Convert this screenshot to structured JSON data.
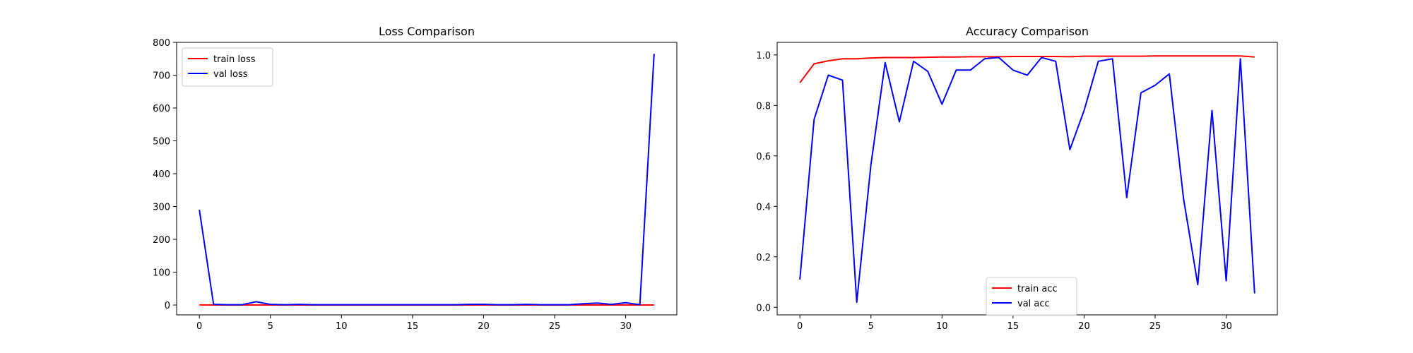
{
  "chart_data": [
    {
      "type": "line",
      "title": "Loss Comparison",
      "xlabel": "",
      "ylabel": "",
      "xlim": [
        -1.6,
        33.6
      ],
      "ylim": [
        -30,
        800
      ],
      "xticks": [
        0,
        5,
        10,
        15,
        20,
        25,
        30
      ],
      "yticks": [
        0,
        100,
        200,
        300,
        400,
        500,
        600,
        700,
        800
      ],
      "grid": false,
      "legend": "upper left",
      "x": [
        0,
        1,
        2,
        3,
        4,
        5,
        6,
        7,
        8,
        9,
        10,
        11,
        12,
        13,
        14,
        15,
        16,
        17,
        18,
        19,
        20,
        21,
        22,
        23,
        24,
        25,
        26,
        27,
        28,
        29,
        30,
        31,
        32
      ],
      "series": [
        {
          "name": "train loss",
          "color": "#ff0000",
          "values": [
            0.4,
            0.1,
            0.07,
            0.05,
            0.05,
            0.04,
            0.04,
            0.03,
            0.03,
            0.03,
            0.03,
            0.02,
            0.02,
            0.02,
            0.02,
            0.02,
            0.02,
            0.02,
            0.02,
            0.02,
            0.02,
            0.01,
            0.01,
            0.01,
            0.01,
            0.01,
            0.01,
            0.01,
            0.01,
            0.01,
            0.01,
            0.01,
            0.01
          ]
        },
        {
          "name": "val loss",
          "color": "#0000ff",
          "values": [
            290,
            2,
            1,
            1,
            10,
            2,
            1,
            2,
            1,
            1,
            1,
            1,
            1,
            1,
            1,
            1,
            1,
            1,
            1,
            2,
            2,
            1,
            1,
            2,
            1,
            1,
            1,
            4,
            6,
            2,
            7,
            1,
            765
          ]
        }
      ]
    },
    {
      "type": "line",
      "title": "Accuracy Comparison",
      "xlabel": "",
      "ylabel": "",
      "xlim": [
        -1.6,
        33.6
      ],
      "ylim": [
        -0.03,
        1.05
      ],
      "xticks": [
        0,
        5,
        10,
        15,
        20,
        25,
        30
      ],
      "yticks": [
        0.0,
        0.2,
        0.4,
        0.6,
        0.8,
        1.0
      ],
      "grid": false,
      "legend": "lower center",
      "x": [
        0,
        1,
        2,
        3,
        4,
        5,
        6,
        7,
        8,
        9,
        10,
        11,
        12,
        13,
        14,
        15,
        16,
        17,
        18,
        19,
        20,
        21,
        22,
        23,
        24,
        25,
        26,
        27,
        28,
        29,
        30,
        31,
        32
      ],
      "series": [
        {
          "name": "train acc",
          "color": "#ff0000",
          "values": [
            0.89,
            0.965,
            0.977,
            0.985,
            0.985,
            0.988,
            0.99,
            0.99,
            0.99,
            0.991,
            0.992,
            0.992,
            0.993,
            0.993,
            0.993,
            0.994,
            0.994,
            0.994,
            0.994,
            0.993,
            0.995,
            0.995,
            0.995,
            0.995,
            0.995,
            0.996,
            0.996,
            0.996,
            0.996,
            0.996,
            0.996,
            0.996,
            0.992
          ]
        },
        {
          "name": "val acc",
          "color": "#0000ff",
          "values": [
            0.11,
            0.745,
            0.92,
            0.9,
            0.02,
            0.565,
            0.97,
            0.735,
            0.975,
            0.935,
            0.805,
            0.94,
            0.94,
            0.985,
            0.99,
            0.94,
            0.92,
            0.99,
            0.975,
            0.625,
            0.78,
            0.975,
            0.985,
            0.435,
            0.85,
            0.88,
            0.925,
            0.43,
            0.09,
            0.78,
            0.105,
            0.985,
            0.055
          ]
        }
      ]
    }
  ]
}
